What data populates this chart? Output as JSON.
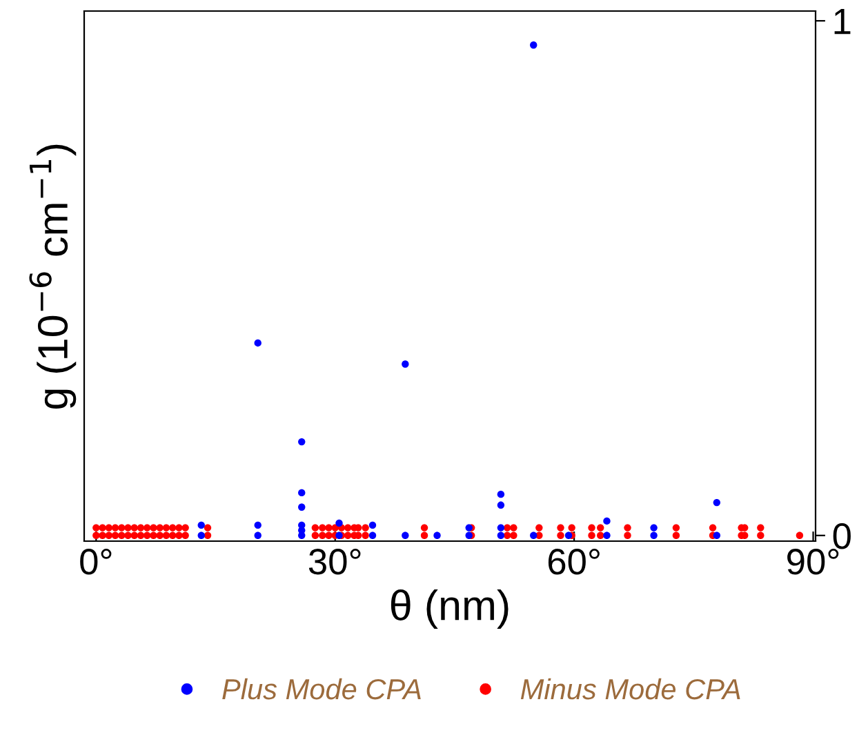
{
  "chart_data": {
    "type": "scatter",
    "xlabel": "θ (nm)",
    "ylabel": "g (10$^{−6}$ cm$^{−1}$)",
    "xlim": [
      -1.5,
      90.3
    ],
    "ylim": [
      -0.011,
      1.019
    ],
    "xticks": [
      {
        "value": 0,
        "label": "0°"
      },
      {
        "value": 30,
        "label": "30°"
      },
      {
        "value": 60,
        "label": "60°"
      },
      {
        "value": 90,
        "label": "90°"
      }
    ],
    "yticks": [
      0,
      1
    ],
    "marker": "circle",
    "legend": "bottom",
    "grid": false,
    "series": [
      {
        "name": "Plus Mode CPA",
        "color": "#0000ff",
        "x": [
          13.2,
          13.2,
          20.3,
          20.3,
          20.3,
          25.8,
          25.8,
          25.8,
          25.8,
          25.8,
          25.8,
          30.5,
          30.5,
          34.7,
          34.7,
          38.8,
          38.8,
          42.8,
          46.8,
          46.8,
          50.8,
          50.8,
          50.8,
          50.8,
          54.9,
          54.9,
          59.3,
          64.1,
          64.1,
          70.0,
          70.0,
          77.9,
          77.9
        ],
        "values": [
          0.02,
          0,
          0.374,
          0.02,
          0,
          0.182,
          0.083,
          0.055,
          0.02,
          0.01,
          0,
          0.024,
          0,
          0.02,
          0,
          0.333,
          0,
          0,
          0.015,
          0,
          0.08,
          0.059,
          0.015,
          0,
          0.953,
          0,
          0,
          0.028,
          0,
          0.015,
          0,
          0.064,
          0
        ]
      },
      {
        "name": "Minus Mode CPA",
        "color": "#ff0000",
        "x": [
          0,
          0.8,
          1.6,
          2.4,
          3.2,
          4,
          4.8,
          5.6,
          6.4,
          7.2,
          8,
          8.8,
          9.6,
          10.4,
          11.2,
          0,
          0.8,
          1.6,
          2.4,
          3.2,
          4,
          4.8,
          5.6,
          6.4,
          7.2,
          8,
          8.8,
          9.6,
          10.4,
          11.2,
          14.0,
          14.0,
          27.5,
          27.5,
          28.4,
          29.2,
          30,
          30.8,
          31.6,
          32.4,
          32.9,
          28.4,
          29.2,
          30,
          30.8,
          31.6,
          32.4,
          32.9,
          33.8,
          33.8,
          41.2,
          41.2,
          47.1,
          47.1,
          51.6,
          51.6,
          52.4,
          52.4,
          55.6,
          55.6,
          58.3,
          58.3,
          59.7,
          59.7,
          62.2,
          62.2,
          63.3,
          63.3,
          66.7,
          66.7,
          72.8,
          72.8,
          77.4,
          77.4,
          81.0,
          81.0,
          81.4,
          81.4,
          83.4,
          83.4,
          88.3
        ],
        "values": [
          0.015,
          0.015,
          0.015,
          0.015,
          0.015,
          0.015,
          0.015,
          0.015,
          0.015,
          0.015,
          0.015,
          0.015,
          0.015,
          0.015,
          0.015,
          0,
          0,
          0,
          0,
          0,
          0,
          0,
          0,
          0,
          0,
          0,
          0,
          0,
          0,
          0,
          0.015,
          0,
          0.015,
          0,
          0.015,
          0.015,
          0.015,
          0.015,
          0.015,
          0.015,
          0.015,
          0,
          0,
          0,
          0,
          0,
          0,
          0,
          0.015,
          0,
          0.015,
          0,
          0.015,
          0,
          0.015,
          0,
          0.015,
          0,
          0.015,
          0,
          0.015,
          0,
          0.015,
          0,
          0.015,
          0,
          0.015,
          0,
          0.015,
          0,
          0.015,
          0,
          0.015,
          0,
          0.015,
          0,
          0.015,
          0,
          0.015,
          0,
          0
        ]
      }
    ]
  }
}
